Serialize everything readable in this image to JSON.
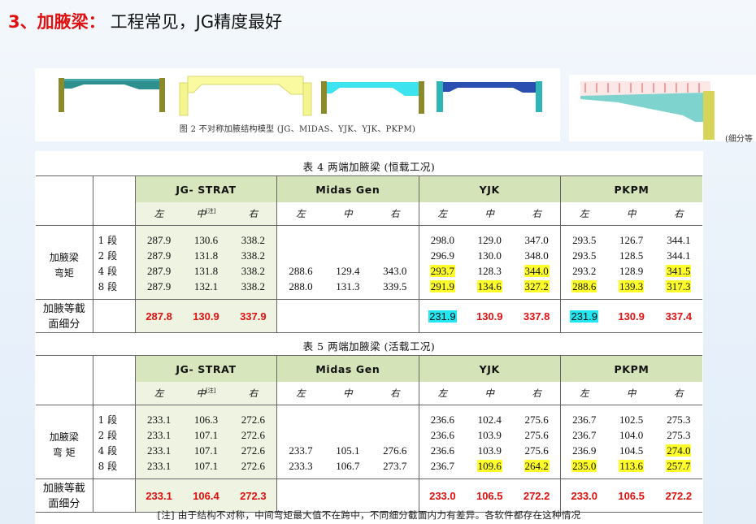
{
  "title": {
    "prefix": "3、加腋梁：",
    "text": "工程常见，JG精度最好"
  },
  "figure": {
    "caption": "图 2  不对称加腋结构模型 (JG、MIDAS、YJK、YJK、PKPM)",
    "side_caption": "(细分等"
  },
  "colors": {
    "yellow_highlight": "#ffff2a",
    "cyan_highlight": "#22e6f0",
    "red_text": "#e01010",
    "header_green": "#d7e6bc"
  },
  "table4": {
    "caption": "表 4  两端加腋梁 (恒载工况)",
    "groups": [
      "JG-  STRAT",
      "Midas Gen",
      "YJK",
      "PKPM"
    ],
    "sub": {
      "left": "左",
      "mid": "中",
      "note_mark": "[注]",
      "right": "右"
    },
    "row_label": [
      "加腋梁",
      "弯矩"
    ],
    "segs": [
      "1 段",
      "2 段",
      "4 段",
      "8 段"
    ],
    "rows": [
      [
        "287.9",
        "130.6",
        "338.2",
        "",
        "",
        "",
        "298.0",
        "129.0",
        "347.0",
        "293.5",
        "126.7",
        "344.1"
      ],
      [
        "287.9",
        "131.8",
        "338.2",
        "",
        "",
        "",
        "296.9",
        "130.0",
        "348.0",
        "293.5",
        "128.5",
        "344.1"
      ],
      [
        "287.9",
        "131.8",
        "338.2",
        "288.6",
        "129.4",
        "343.0",
        "293.7",
        "128.3",
        "344.0",
        "293.2",
        "128.9",
        "341.5"
      ],
      [
        "287.9",
        "132.1",
        "338.2",
        "288.0",
        "131.3",
        "339.5",
        "291.9",
        "134.6",
        "327.2",
        "288.6",
        "139.3",
        "317.3"
      ]
    ],
    "fine_label": [
      "加腋等截",
      "面细分"
    ],
    "fine": [
      "287.8",
      "130.9",
      "337.9",
      "",
      "",
      "",
      "231.9",
      "130.9",
      "337.8",
      "231.9",
      "130.9",
      "337.4"
    ]
  },
  "table5": {
    "caption": "表 5  两端加腋梁 (活载工况)",
    "groups": [
      "JG-  STRAT",
      "Midas Gen",
      "YJK",
      "PKPM"
    ],
    "sub": {
      "left": "左",
      "mid": "中",
      "note_mark": "[注]",
      "right": "右"
    },
    "row_label": [
      "加腋梁",
      "弯   矩"
    ],
    "segs": [
      "1 段",
      "2 段",
      "4 段",
      "8 段"
    ],
    "rows": [
      [
        "233.1",
        "106.3",
        "272.6",
        "",
        "",
        "",
        "236.6",
        "102.4",
        "275.6",
        "236.7",
        "102.5",
        "275.3"
      ],
      [
        "233.1",
        "107.1",
        "272.6",
        "",
        "",
        "",
        "236.6",
        "103.9",
        "275.6",
        "236.7",
        "104.0",
        "275.3"
      ],
      [
        "233.1",
        "107.1",
        "272.6",
        "233.7",
        "105.1",
        "276.6",
        "236.6",
        "103.9",
        "275.6",
        "236.9",
        "104.5",
        "274.0"
      ],
      [
        "233.1",
        "107.1",
        "272.6",
        "233.3",
        "106.7",
        "273.7",
        "236.7",
        "109.6",
        "264.2",
        "235.0",
        "113.6",
        "257.7"
      ]
    ],
    "fine_label": [
      "加腋等截",
      "面细分"
    ],
    "fine": [
      "233.1",
      "106.4",
      "272.3",
      "",
      "",
      "",
      "233.0",
      "106.5",
      "272.2",
      "233.0",
      "106.5",
      "272.2"
    ]
  },
  "footnote": "[注] 由于结构不对称，中间弯矩最大值不在跨中，不同细分截面内力有差异。各软件都存在这种情况"
}
